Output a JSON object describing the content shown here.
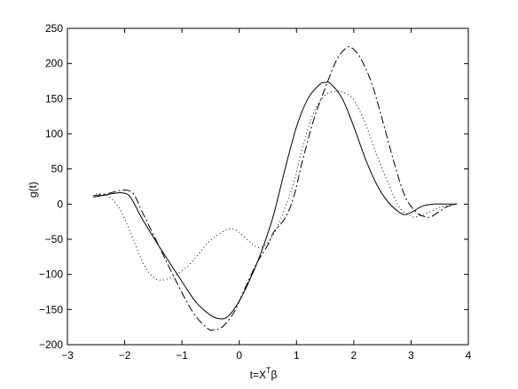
{
  "chart_data": {
    "type": "line",
    "title": "",
    "xlabel": "t=X",
    "xlabel_sup": "T",
    "xlabel_tail": "β",
    "ylabel": "g(t)",
    "xlim": [
      -3,
      4
    ],
    "ylim": [
      -200,
      250
    ],
    "xticks": [
      -3,
      -2,
      -1,
      0,
      1,
      2,
      3,
      4
    ],
    "yticks": [
      -200,
      -150,
      -100,
      -50,
      0,
      50,
      100,
      150,
      200,
      250
    ],
    "grid": false,
    "legend": "none",
    "series": [
      {
        "style": "solid",
        "color": "#000000",
        "points": [
          [
            -2.55,
            10
          ],
          [
            -2.4,
            12
          ],
          [
            -2.2,
            15
          ],
          [
            -2.05,
            16
          ],
          [
            -1.9,
            10
          ],
          [
            -1.7,
            -20
          ],
          [
            -1.4,
            -60
          ],
          [
            -1.0,
            -110
          ],
          [
            -0.75,
            -140
          ],
          [
            -0.5,
            -158
          ],
          [
            -0.35,
            -163
          ],
          [
            -0.2,
            -160
          ],
          [
            0.0,
            -138
          ],
          [
            0.2,
            -105
          ],
          [
            0.4,
            -65
          ],
          [
            0.6,
            -15
          ],
          [
            0.8,
            50
          ],
          [
            1.0,
            110
          ],
          [
            1.2,
            150
          ],
          [
            1.4,
            170
          ],
          [
            1.5,
            173
          ],
          [
            1.6,
            171
          ],
          [
            1.8,
            150
          ],
          [
            2.0,
            110
          ],
          [
            2.2,
            65
          ],
          [
            2.4,
            28
          ],
          [
            2.6,
            3
          ],
          [
            2.8,
            -12
          ],
          [
            2.9,
            -15
          ],
          [
            3.0,
            -12
          ],
          [
            3.2,
            -3
          ],
          [
            3.4,
            0
          ],
          [
            3.6,
            0
          ],
          [
            3.8,
            0
          ]
        ]
      },
      {
        "style": "dashdot",
        "color": "#000000",
        "points": [
          [
            -2.55,
            12
          ],
          [
            -2.35,
            14
          ],
          [
            -2.15,
            18
          ],
          [
            -2.0,
            20
          ],
          [
            -1.85,
            15
          ],
          [
            -1.7,
            -10
          ],
          [
            -1.4,
            -60
          ],
          [
            -1.1,
            -110
          ],
          [
            -0.8,
            -155
          ],
          [
            -0.55,
            -177
          ],
          [
            -0.45,
            -179
          ],
          [
            -0.3,
            -175
          ],
          [
            -0.1,
            -155
          ],
          [
            0.1,
            -120
          ],
          [
            0.3,
            -85
          ],
          [
            0.5,
            -58
          ],
          [
            0.6,
            -40
          ],
          [
            0.8,
            -20
          ],
          [
            0.95,
            10
          ],
          [
            1.1,
            60
          ],
          [
            1.3,
            120
          ],
          [
            1.5,
            165
          ],
          [
            1.7,
            205
          ],
          [
            1.85,
            221
          ],
          [
            1.95,
            223
          ],
          [
            2.1,
            210
          ],
          [
            2.3,
            175
          ],
          [
            2.5,
            120
          ],
          [
            2.7,
            60
          ],
          [
            2.9,
            10
          ],
          [
            3.1,
            -12
          ],
          [
            3.25,
            -18
          ],
          [
            3.35,
            -18
          ],
          [
            3.5,
            -10
          ],
          [
            3.65,
            -3
          ],
          [
            3.8,
            0
          ]
        ]
      },
      {
        "style": "dotted",
        "color": "#000000",
        "points": [
          [
            -2.5,
            15
          ],
          [
            -2.3,
            12
          ],
          [
            -2.1,
            -5
          ],
          [
            -1.9,
            -40
          ],
          [
            -1.7,
            -80
          ],
          [
            -1.55,
            -100
          ],
          [
            -1.4,
            -108
          ],
          [
            -1.2,
            -105
          ],
          [
            -1.0,
            -95
          ],
          [
            -0.8,
            -80
          ],
          [
            -0.55,
            -55
          ],
          [
            -0.3,
            -40
          ],
          [
            -0.15,
            -35
          ],
          [
            0.0,
            -40
          ],
          [
            0.2,
            -55
          ],
          [
            0.35,
            -62
          ],
          [
            0.5,
            -55
          ],
          [
            0.65,
            -35
          ],
          [
            0.8,
            -5
          ],
          [
            0.95,
            30
          ],
          [
            1.1,
            80
          ],
          [
            1.3,
            130
          ],
          [
            1.5,
            155
          ],
          [
            1.7,
            160
          ],
          [
            1.85,
            158
          ],
          [
            2.0,
            148
          ],
          [
            2.2,
            115
          ],
          [
            2.4,
            70
          ],
          [
            2.6,
            30
          ],
          [
            2.8,
            -5
          ],
          [
            3.0,
            -17
          ],
          [
            3.1,
            -18
          ],
          [
            3.3,
            -12
          ],
          [
            3.5,
            -5
          ],
          [
            3.7,
            -2
          ],
          [
            3.8,
            0
          ]
        ]
      }
    ]
  }
}
